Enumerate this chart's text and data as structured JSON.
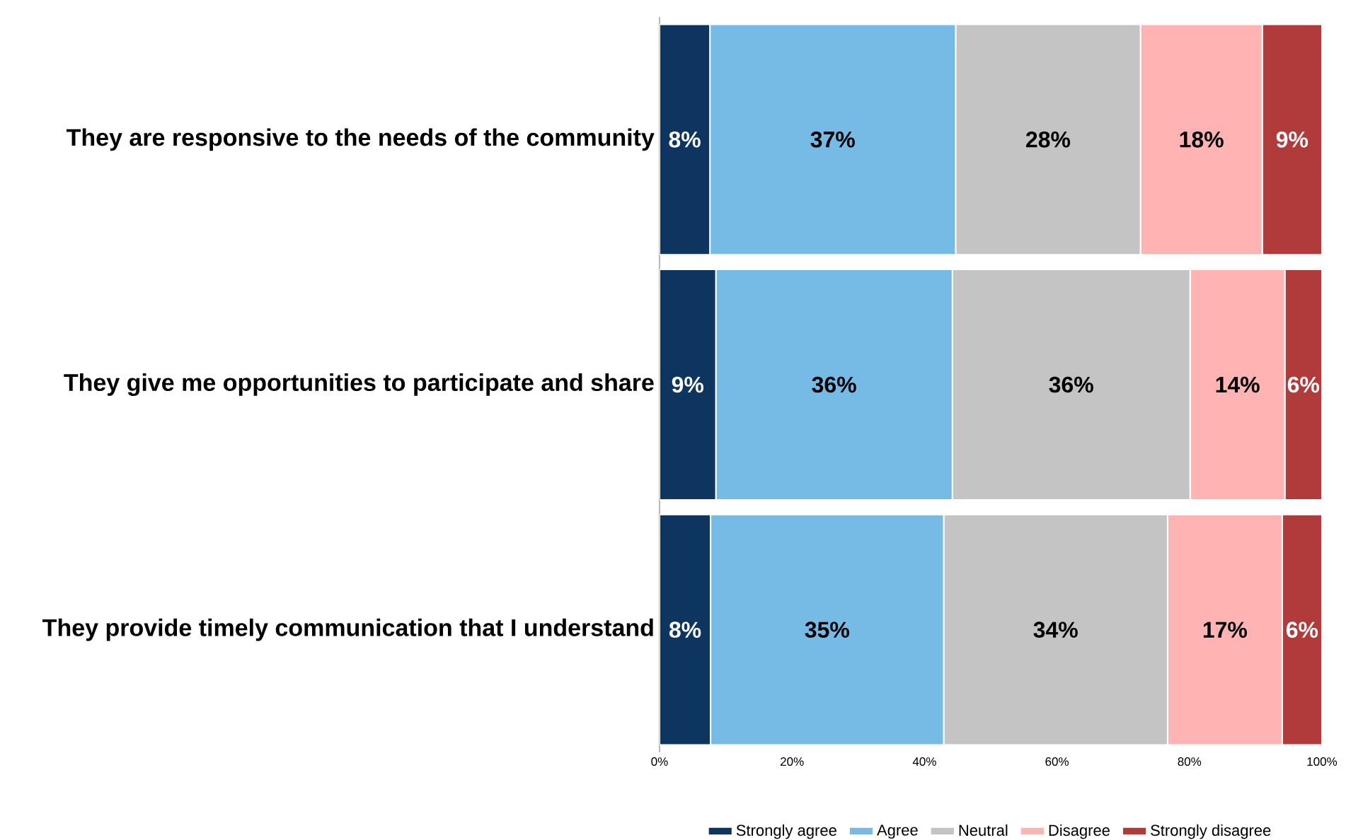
{
  "chart_data": {
    "type": "bar",
    "orientation": "horizontal",
    "stacked": true,
    "categories": [
      "They are responsive to the needs of the community",
      "They give me opportunities to participate and share",
      "They provide timely communication that I understand"
    ],
    "series": [
      {
        "name": "Strongly agree",
        "color": "#0d3560",
        "values": [
          7.6,
          8.5,
          7.7
        ],
        "value_labels": [
          "8%",
          "9%",
          "8%"
        ]
      },
      {
        "name": "Agree",
        "color": "#76bbe6",
        "values": [
          37.1,
          35.7,
          35.2
        ],
        "value_labels": [
          "37%",
          "36%",
          "35%"
        ]
      },
      {
        "name": "Neutral",
        "color": "#c4c4c4",
        "values": [
          27.9,
          35.9,
          33.8
        ],
        "value_labels": [
          "28%",
          "36%",
          "34%"
        ]
      },
      {
        "name": "Disagree",
        "color": "#ffb3b3",
        "values": [
          18.4,
          14.3,
          17.3
        ],
        "value_labels": [
          "18%",
          "14%",
          "17%"
        ]
      },
      {
        "name": "Strongly disagree",
        "color": "#b13b3b",
        "values": [
          9.0,
          5.6,
          6.0
        ],
        "value_labels": [
          "9%",
          "6%",
          "6%"
        ]
      }
    ],
    "xlim": [
      0,
      100
    ],
    "xticks": [
      {
        "value": 0,
        "label": "0%"
      },
      {
        "value": 20,
        "label": "20%"
      },
      {
        "value": 40,
        "label": "40%"
      },
      {
        "value": 60,
        "label": "60%"
      },
      {
        "value": 80,
        "label": "80%"
      },
      {
        "value": 100,
        "label": "100%"
      }
    ],
    "legend": "bottom"
  }
}
